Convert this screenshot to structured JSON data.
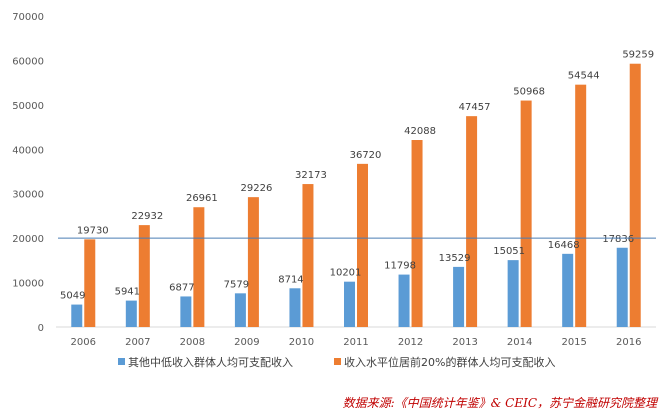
{
  "chart_data": {
    "type": "bar",
    "categories": [
      "2006",
      "2007",
      "2008",
      "2009",
      "2010",
      "2011",
      "2012",
      "2013",
      "2014",
      "2015",
      "2016"
    ],
    "series": [
      {
        "name": "其他中低收入群体人均可支配收入",
        "color": "#5b9bd5",
        "values": [
          5049,
          5941,
          6877,
          7579,
          8714,
          10201,
          11798,
          13529,
          15051,
          16468,
          17836
        ]
      },
      {
        "name": "收入水平位居前20%的群体人均可支配收入",
        "color": "#ed7d31",
        "values": [
          19730,
          22932,
          26961,
          29226,
          32173,
          36720,
          42088,
          47457,
          50968,
          54544,
          59259
        ]
      }
    ],
    "ylim": [
      0,
      70000
    ],
    "yticks": [
      0,
      10000,
      20000,
      30000,
      40000,
      50000,
      60000,
      70000
    ],
    "reference_line": {
      "y": 20000,
      "color": "#4a7db5"
    },
    "grid": false,
    "legend": "bottom",
    "source": "数据来源:《中国统计年鉴》& CEIC，苏宁金融研究院整理"
  }
}
